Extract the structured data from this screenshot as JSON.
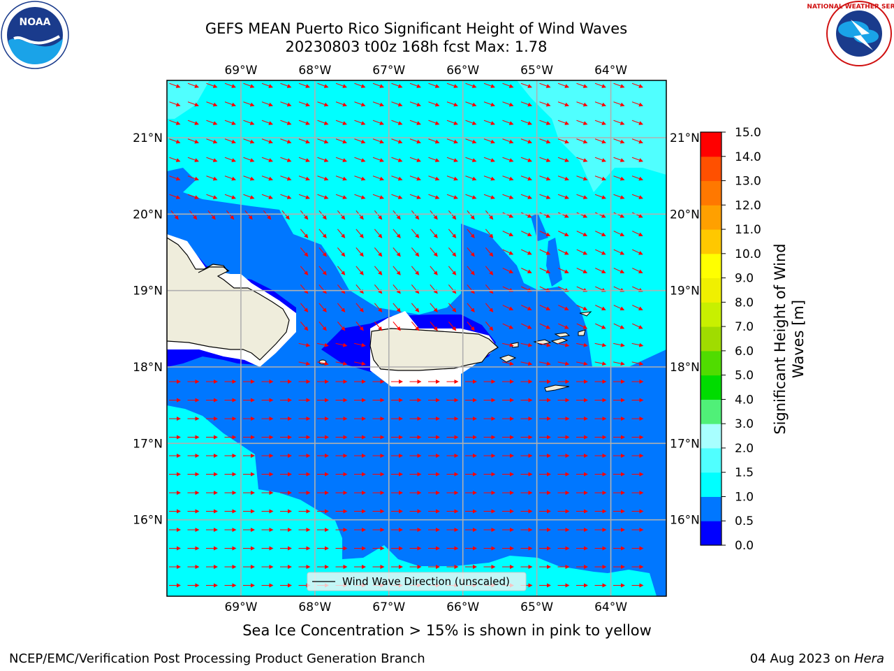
{
  "title": {
    "line1": "GEFS MEAN Puerto Rico Significant Height of Wind Waves",
    "line2": "20230803 t00z 168h fcst   Max: 1.78"
  },
  "logos": {
    "left": {
      "name": "noaa-logo",
      "text": "NOAA"
    },
    "right": {
      "name": "national-weather-service-logo",
      "text": "NATIONAL WEATHER SERVICE"
    }
  },
  "map": {
    "lon_ticks": [
      "69°W",
      "68°W",
      "67°W",
      "66°W",
      "65°W",
      "64°W"
    ],
    "lat_ticks": [
      "21°N",
      "20°N",
      "19°N",
      "18°N",
      "17°N",
      "16°N"
    ],
    "lon_range": [
      -70.0,
      -63.25
    ],
    "lat_range": [
      15.0,
      21.75
    ],
    "legend_label": "Wind Wave Direction (unscaled)",
    "land_color": "#efeddc",
    "arrow_color": "#ff0000",
    "grid": true
  },
  "colorbar": {
    "label_line1": "Significant Height of Wind",
    "label_line2": "Waves [m]",
    "ticks": [
      "0.0",
      "0.5",
      "1.0",
      "1.5",
      "2.0",
      "3.0",
      "4.0",
      "5.0",
      "6.0",
      "7.0",
      "8.0",
      "9.0",
      "10.0",
      "11.0",
      "12.0",
      "13.0",
      "14.0",
      "15.0"
    ],
    "colors": [
      "#0000ff",
      "#0077ff",
      "#00ffff",
      "#50ffff",
      "#a8ffff",
      "#50f078",
      "#00dc00",
      "#50dc00",
      "#a0dc00",
      "#c8f000",
      "#f0f000",
      "#ffff00",
      "#ffc800",
      "#ffa000",
      "#ff7800",
      "#ff5000",
      "#ff0000"
    ]
  },
  "note": "Sea Ice Concentration > 15% is shown in pink to yellow",
  "footer": {
    "left": "NCEP/EMC/Verification Post Processing Product Generation Branch",
    "right_prefix": "04 Aug 2023 on ",
    "right_host": "Hera"
  }
}
